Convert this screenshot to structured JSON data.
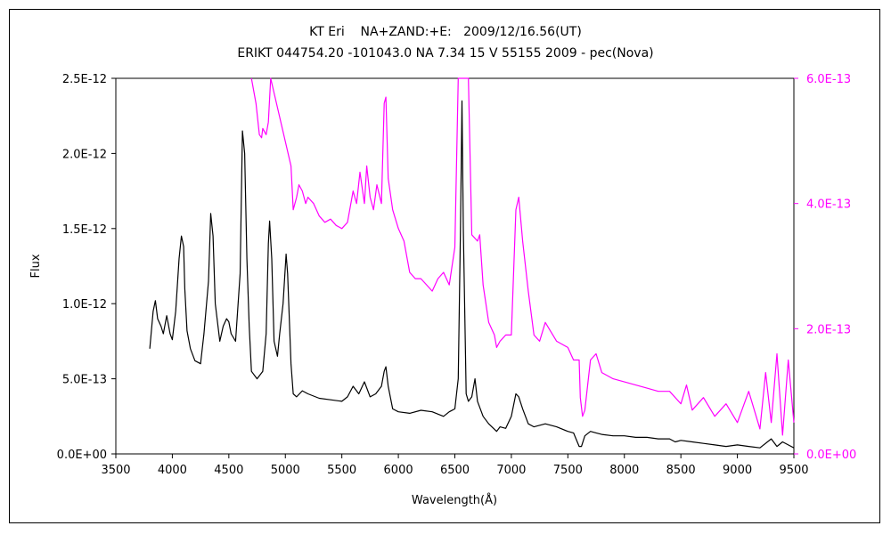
{
  "title": "KT Eri    NA+ZAND:+E:   2009/12/16.56(UT)",
  "subtitle": "ERIKT 044754.20 -101043.0 NA 7.34 15 V 55155 2009 - pec(Nova)",
  "colors": {
    "primary": "#000000",
    "secondary": "#ff00ff"
  },
  "chart_data": {
    "type": "line",
    "xlabel": "Wavelength(Å)",
    "ylabel": "Flux",
    "xlim": [
      3500,
      9500
    ],
    "ylim": [
      0,
      2.5e-12
    ],
    "y2lim": [
      0,
      6e-13
    ],
    "x_ticks": [
      "3500",
      "4000",
      "4500",
      "5000",
      "5500",
      "6000",
      "6500",
      "7000",
      "7500",
      "8000",
      "8500",
      "9000",
      "9500"
    ],
    "y_ticks": [
      "0.0E+00",
      "5.0E-13",
      "1.0E-12",
      "1.5E-12",
      "2.0E-12",
      "2.5E-12"
    ],
    "y2_ticks": [
      "0.0E+00",
      "2.0E-13",
      "4.0E-13",
      "6.0E-13"
    ],
    "series": [
      {
        "axis": "left",
        "color": "#000000",
        "x": [
          3800,
          3830,
          3850,
          3870,
          3900,
          3920,
          3950,
          3980,
          4000,
          4030,
          4060,
          4080,
          4100,
          4110,
          4130,
          4160,
          4200,
          4250,
          4280,
          4320,
          4340,
          4360,
          4380,
          4420,
          4450,
          4480,
          4500,
          4520,
          4560,
          4600,
          4620,
          4640,
          4660,
          4680,
          4700,
          4750,
          4800,
          4830,
          4850,
          4861,
          4880,
          4900,
          4930,
          4950,
          4980,
          5007,
          5020,
          5050,
          5070,
          5100,
          5150,
          5200,
          5300,
          5400,
          5500,
          5550,
          5600,
          5650,
          5700,
          5750,
          5800,
          5850,
          5875,
          5890,
          5910,
          5950,
          6000,
          6100,
          6200,
          6300,
          6400,
          6450,
          6500,
          6530,
          6550,
          6563,
          6575,
          6600,
          6620,
          6650,
          6678,
          6700,
          6750,
          6800,
          6870,
          6900,
          6950,
          7000,
          7040,
          7065,
          7100,
          7150,
          7200,
          7300,
          7400,
          7500,
          7550,
          7600,
          7620,
          7650,
          7700,
          7750,
          7800,
          7900,
          8000,
          8100,
          8200,
          8300,
          8400,
          8450,
          8500,
          8600,
          8700,
          8800,
          8900,
          9000,
          9100,
          9200,
          9300,
          9350,
          9400,
          9450,
          9500
        ],
        "y": [
          7e-13,
          9.5e-13,
          1.02e-12,
          9e-13,
          8.5e-13,
          8e-13,
          9.2e-13,
          8e-13,
          7.6e-13,
          9.5e-13,
          1.3e-12,
          1.45e-12,
          1.38e-12,
          1.1e-12,
          8.2e-13,
          7e-13,
          6.2e-13,
          6e-13,
          8e-13,
          1.15e-12,
          1.6e-12,
          1.45e-12,
          1e-12,
          7.5e-13,
          8.5e-13,
          9e-13,
          8.8e-13,
          8e-13,
          7.5e-13,
          1.2e-12,
          2.15e-12,
          2e-12,
          1.3e-12,
          8.5e-13,
          5.5e-13,
          5e-13,
          5.5e-13,
          8e-13,
          1.4e-12,
          1.55e-12,
          1.3e-12,
          7.5e-13,
          6.5e-13,
          8e-13,
          1e-12,
          1.33e-12,
          1.2e-12,
          6e-13,
          4e-13,
          3.8e-13,
          4.2e-13,
          4e-13,
          3.7e-13,
          3.6e-13,
          3.5e-13,
          3.8e-13,
          4.5e-13,
          4e-13,
          4.8e-13,
          3.8e-13,
          4e-13,
          4.5e-13,
          5.5e-13,
          5.8e-13,
          4.5e-13,
          3e-13,
          2.8e-13,
          2.7e-13,
          2.9e-13,
          2.8e-13,
          2.5e-13,
          2.8e-13,
          3e-13,
          5e-13,
          1.5e-12,
          2.35e-12,
          1.5e-12,
          4e-13,
          3.5e-13,
          3.8e-13,
          5e-13,
          3.5e-13,
          2.5e-13,
          2e-13,
          1.5e-13,
          1.8e-13,
          1.7e-13,
          2.5e-13,
          4e-13,
          3.8e-13,
          3e-13,
          2e-13,
          1.8e-13,
          2e-13,
          1.8e-13,
          1.5e-13,
          1.4e-13,
          5e-14,
          5e-14,
          1.2e-13,
          1.5e-13,
          1.4e-13,
          1.3e-13,
          1.2e-13,
          1.2e-13,
          1.1e-13,
          1.1e-13,
          1e-13,
          1e-13,
          8e-14,
          9e-14,
          8e-14,
          7e-14,
          6e-14,
          5e-14,
          6e-14,
          5e-14,
          4e-14,
          1e-13,
          5e-14,
          8e-14,
          6e-14,
          4e-14
        ]
      },
      {
        "axis": "right",
        "color": "#ff00ff",
        "x": [
          4700,
          4740,
          4770,
          4790,
          4800,
          4830,
          4850,
          4870,
          5050,
          5070,
          5100,
          5120,
          5150,
          5180,
          5200,
          5250,
          5300,
          5350,
          5400,
          5450,
          5500,
          5550,
          5600,
          5630,
          5660,
          5700,
          5720,
          5750,
          5780,
          5810,
          5850,
          5875,
          5890,
          5910,
          5950,
          6000,
          6050,
          6100,
          6150,
          6200,
          6250,
          6300,
          6350,
          6400,
          6450,
          6500,
          6530,
          6550,
          6563,
          6620,
          6650,
          6700,
          6720,
          6750,
          6800,
          6850,
          6870,
          6900,
          6950,
          7000,
          7040,
          7065,
          7100,
          7150,
          7200,
          7250,
          7300,
          7400,
          7500,
          7550,
          7600,
          7610,
          7630,
          7650,
          7700,
          7750,
          7800,
          7900,
          8000,
          8100,
          8200,
          8300,
          8400,
          8500,
          8550,
          8600,
          8700,
          8800,
          8900,
          9000,
          9100,
          9200,
          9250,
          9300,
          9350,
          9400,
          9450,
          9500
        ],
        "y": [
          6e-13,
          5.6e-13,
          5.1e-13,
          5.05e-13,
          5.2e-13,
          5.1e-13,
          5.3e-13,
          6e-13,
          4.6e-13,
          3.9e-13,
          4.1e-13,
          4.3e-13,
          4.2e-13,
          4e-13,
          4.1e-13,
          4e-13,
          3.8e-13,
          3.7e-13,
          3.75e-13,
          3.65e-13,
          3.6e-13,
          3.7e-13,
          4.2e-13,
          4e-13,
          4.5e-13,
          4e-13,
          4.6e-13,
          4.1e-13,
          3.9e-13,
          4.3e-13,
          4e-13,
          5.6e-13,
          5.7e-13,
          4.4e-13,
          3.9e-13,
          3.6e-13,
          3.4e-13,
          2.9e-13,
          2.8e-13,
          2.8e-13,
          2.7e-13,
          2.6e-13,
          2.8e-13,
          2.9e-13,
          2.7e-13,
          3.3e-13,
          6e-13,
          6e-13,
          6e-13,
          6e-13,
          3.5e-13,
          3.4e-13,
          3.5e-13,
          2.7e-13,
          2.1e-13,
          1.9e-13,
          1.7e-13,
          1.8e-13,
          1.9e-13,
          1.9e-13,
          3.9e-13,
          4.1e-13,
          3.4e-13,
          2.6e-13,
          1.9e-13,
          1.8e-13,
          2.1e-13,
          1.8e-13,
          1.7e-13,
          1.5e-13,
          1.5e-13,
          9e-14,
          6e-14,
          7e-14,
          1.5e-13,
          1.6e-13,
          1.3e-13,
          1.2e-13,
          1.15e-13,
          1.1e-13,
          1.05e-13,
          1e-13,
          1e-13,
          8e-14,
          1.1e-13,
          7e-14,
          9e-14,
          6e-14,
          8e-14,
          5e-14,
          1e-13,
          4e-14,
          1.3e-13,
          5e-14,
          1.6e-13,
          3e-14,
          1.5e-13,
          5e-14
        ]
      }
    ]
  }
}
